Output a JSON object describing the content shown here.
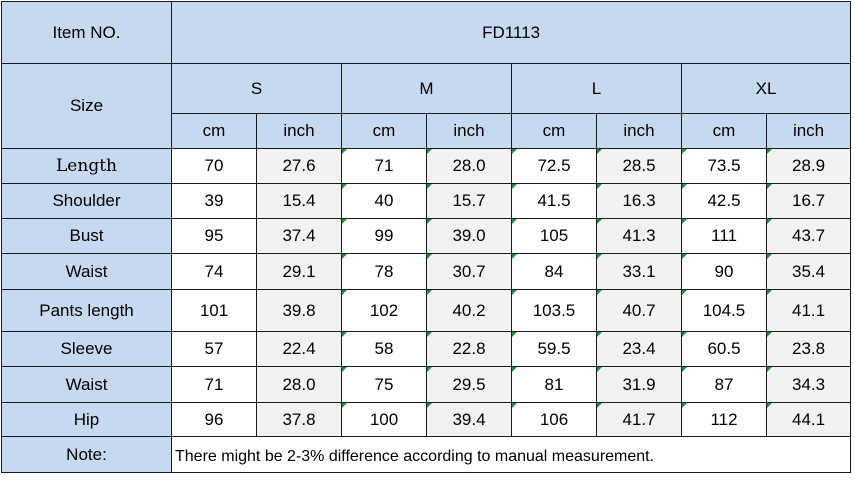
{
  "header": {
    "item_label": "Item NO.",
    "item_code": "FD1113",
    "size_label": "Size",
    "sizes": [
      "S",
      "M",
      "L",
      "XL"
    ],
    "unit_cm": "cm",
    "unit_inch": "inch"
  },
  "rows": [
    {
      "label": "Length",
      "values": [
        "70",
        "27.6",
        "71",
        "28.0",
        "72.5",
        "28.5",
        "73.5",
        "28.9"
      ]
    },
    {
      "label": "Shoulder",
      "values": [
        "39",
        "15.4",
        "40",
        "15.7",
        "41.5",
        "16.3",
        "42.5",
        "16.7"
      ]
    },
    {
      "label": "Bust",
      "values": [
        "95",
        "37.4",
        "99",
        "39.0",
        "105",
        "41.3",
        "111",
        "43.7"
      ]
    },
    {
      "label": "Waist",
      "values": [
        "74",
        "29.1",
        "78",
        "30.7",
        "84",
        "33.1",
        "90",
        "35.4"
      ]
    },
    {
      "label": "Pants length",
      "values": [
        "101",
        "39.8",
        "102",
        "40.2",
        "103.5",
        "40.7",
        "104.5",
        "41.1"
      ]
    },
    {
      "label": "Sleeve",
      "values": [
        "57",
        "22.4",
        "58",
        "22.8",
        "59.5",
        "23.4",
        "60.5",
        "23.8"
      ]
    },
    {
      "label": "Waist",
      "values": [
        "71",
        "28.0",
        "75",
        "29.5",
        "81",
        "31.9",
        "87",
        "34.3"
      ]
    },
    {
      "label": "Hip",
      "values": [
        "96",
        "37.8",
        "100",
        "39.4",
        "106",
        "41.7",
        "112",
        "44.1"
      ]
    }
  ],
  "note": {
    "label": "Note:",
    "text": "There might be 2-3% difference according to manual measurement."
  },
  "colors": {
    "header_fill": "#c6d9f0",
    "inch_fill": "#f2f2f2",
    "border": "#1a1a1a",
    "indicator": "#1f8f3a"
  }
}
